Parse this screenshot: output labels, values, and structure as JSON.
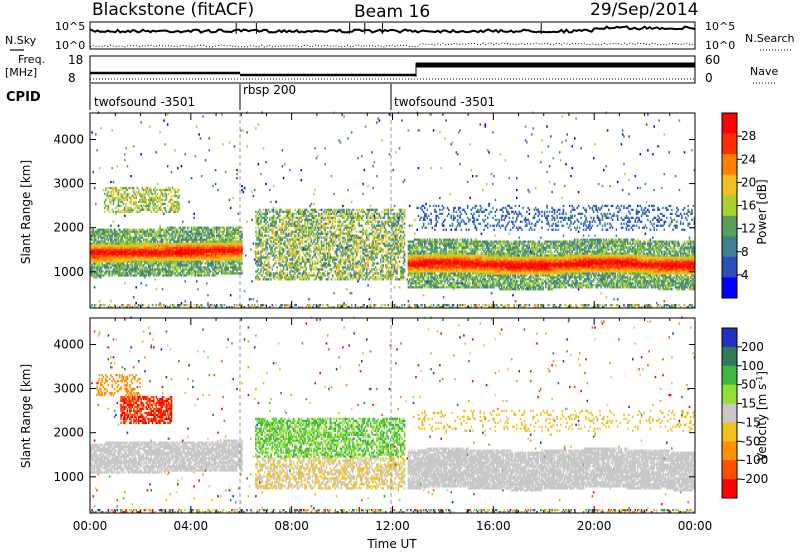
{
  "header": {
    "radar": "Blackstone (fitACF)",
    "beam": "Beam 16",
    "date": "29/Sep/2014"
  },
  "status_panels": {
    "nsky_label": "N.Sky",
    "nsearch_label": "N.Search",
    "noise_ticks_left": [
      "10^5",
      "10^0"
    ],
    "noise_ticks_right": [
      "10^5",
      "10^0"
    ],
    "freq_label": "Freq.",
    "freq_unit": "[MHz]",
    "freq_ticks": [
      "18",
      "8"
    ],
    "nave_label": "Nave",
    "nave_ticks": [
      "60",
      "0"
    ],
    "cpid_label": "CPID",
    "cpid_segments": [
      {
        "label": "twofsound -3501",
        "start": 0,
        "end": 6
      },
      {
        "label": "rbsp 200",
        "start": 6,
        "end": 12
      },
      {
        "label": "twofsound -3501",
        "start": 12,
        "end": 24
      }
    ]
  },
  "chart_data": [
    {
      "type": "heatmap",
      "name": "power",
      "xlabel": "",
      "ylabel": "Slant Range [km]",
      "xlim": [
        0,
        24
      ],
      "ylim": [
        180,
        4600
      ],
      "yticks": [
        1000,
        2000,
        3000,
        4000
      ],
      "colorbar": {
        "label": "Power [dB]",
        "ticks": [
          "4",
          "8",
          "12",
          "16",
          "20",
          "24",
          "28"
        ],
        "range": [
          0,
          30
        ],
        "colors": [
          "#0000ff",
          "#2a4fbf",
          "#3c7f8f",
          "#5aa05a",
          "#a8d030",
          "#f0c020",
          "#ff8000",
          "#ff3000",
          "#ff0000"
        ]
      },
      "features": [
        {
          "feature": "main_echo_band_range_km",
          "t_start": 0,
          "t_end": 6,
          "range_low": 1250,
          "range_high": 1700,
          "peak_power_db": 28
        },
        {
          "feature": "main_echo_band_range_km",
          "t_start": 12.6,
          "t_end": 24,
          "range_low": 950,
          "range_high": 1500,
          "peak_power_db": 26
        }
      ]
    },
    {
      "type": "heatmap",
      "name": "velocity",
      "xlabel": "Time UT",
      "ylabel": "Slant Range [km]",
      "xlim": [
        0,
        24
      ],
      "ylim": [
        180,
        4600
      ],
      "xticks": [
        "00:00",
        "04:00",
        "08:00",
        "12:00",
        "16:00",
        "20:00",
        "00:00"
      ],
      "yticks": [
        1000,
        2000,
        3000,
        4000
      ],
      "colorbar": {
        "label": "Velocity [m s",
        "label_superscript": "-1",
        "label_close": "]",
        "ticks": [
          "200",
          "100",
          "50",
          "15",
          "-15",
          "-50",
          "-100",
          "-200"
        ],
        "colors": [
          "#2030c0",
          "#2e7a5a",
          "#40b840",
          "#90e030",
          "#c8c8c8",
          "#f0c020",
          "#ff9000",
          "#ff5000",
          "#ff0000"
        ]
      }
    }
  ],
  "colors": {
    "ground_scatter": "#c8c8c8"
  }
}
